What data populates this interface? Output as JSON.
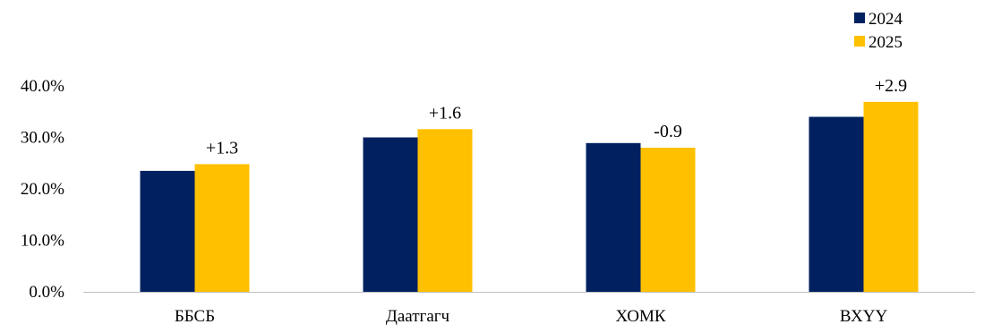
{
  "chart_data": {
    "type": "bar",
    "categories": [
      "ББСБ",
      "Даатгагч",
      "ХОМК",
      "ВХҮҮ"
    ],
    "series": [
      {
        "name": "2024",
        "color": "#002060",
        "values": [
          23.5,
          30.0,
          28.9,
          34.0
        ]
      },
      {
        "name": "2025",
        "color": "#FFC000",
        "values": [
          24.8,
          31.6,
          28.0,
          36.9
        ]
      }
    ],
    "data_labels": [
      "+1.3",
      "+1.6",
      "-0.9",
      "+2.9"
    ],
    "y_ticks": [
      "0.0%",
      "10.0%",
      "20.0%",
      "30.0%",
      "40.0%"
    ],
    "ylim": [
      0,
      40
    ],
    "grid": false,
    "legend_position": "top-right",
    "title": "",
    "xlabel": "",
    "ylabel": ""
  }
}
